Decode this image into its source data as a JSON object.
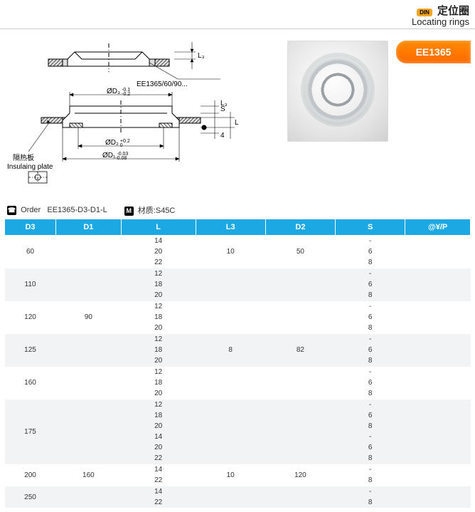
{
  "header": {
    "din": "DIN",
    "title_cn": "定位圈",
    "title_en": "Locating rings"
  },
  "badge": {
    "part": "EE1365"
  },
  "diagram": {
    "callout_model": "EE1365/60/90...",
    "insul_cn": "隔热板",
    "insul_en": "Insulaing plate",
    "dim_L3": "L₃",
    "dim_S": "S",
    "dim_L": "L",
    "dim_4": "4",
    "dim_D3": "ØD₃",
    "dim_D3_tol_up": "-0.1",
    "dim_D3_tol_lo": "-0.2",
    "dim_D2": "ØD₂",
    "dim_D2_tol_up": "+0.2",
    "dim_D2_tol_lo": "0",
    "dim_D1": "ØD₁",
    "dim_D1_tol_up": "-0.03",
    "dim_D1_tol_lo": "-0.08"
  },
  "order": {
    "label_order": "Order",
    "code": "EE1365-D3-D1-L",
    "label_mat": "材质:S45C",
    "icon_m": "M"
  },
  "table": {
    "headers": [
      "D3",
      "D1",
      "L",
      "L3",
      "D2",
      "S",
      "@¥/P"
    ],
    "groups": [
      {
        "d3": "60",
        "d1": "",
        "l3": "10",
        "d2": "50",
        "rows": [
          {
            "l": "14",
            "s": "-"
          },
          {
            "l": "20",
            "s": "6"
          },
          {
            "l": "22",
            "s": "8"
          }
        ]
      },
      {
        "d3": "110",
        "d1": "",
        "l3": "",
        "d2": "",
        "rows": [
          {
            "l": "12",
            "s": "-"
          },
          {
            "l": "18",
            "s": "6"
          },
          {
            "l": "20",
            "s": "8"
          }
        ]
      },
      {
        "d3": "120",
        "d1": "90",
        "l3": "",
        "d2": "",
        "rows": [
          {
            "l": "12",
            "s": "-"
          },
          {
            "l": "18",
            "s": "6"
          },
          {
            "l": "20",
            "s": "8"
          }
        ]
      },
      {
        "d3": "125",
        "d1": "",
        "l3": "8",
        "d2": "82",
        "rows": [
          {
            "l": "12",
            "s": "-"
          },
          {
            "l": "18",
            "s": "6"
          },
          {
            "l": "20",
            "s": "8"
          }
        ]
      },
      {
        "d3": "160",
        "d1": "",
        "l3": "",
        "d2": "",
        "rows": [
          {
            "l": "12",
            "s": "-"
          },
          {
            "l": "18",
            "s": "6"
          },
          {
            "l": "20",
            "s": "8"
          }
        ]
      },
      {
        "d3": "175",
        "d1": "",
        "l3": "",
        "d2": "",
        "rows": [
          {
            "l": "12",
            "s": "-"
          },
          {
            "l": "18",
            "s": "6"
          },
          {
            "l": "20",
            "s": "8"
          },
          {
            "l": "14",
            "s": "-"
          },
          {
            "l": "20",
            "s": "6"
          },
          {
            "l": "22",
            "s": "8"
          }
        ]
      },
      {
        "d3": "200",
        "d1": "160",
        "l3": "10",
        "d2": "120",
        "rows": [
          {
            "l": "14",
            "s": "-"
          },
          {
            "l": "22",
            "s": "8"
          }
        ]
      },
      {
        "d3": "250",
        "d1": "",
        "l3": "",
        "d2": "",
        "rows": [
          {
            "l": "14",
            "s": "-"
          },
          {
            "l": "22",
            "s": "8"
          }
        ]
      }
    ]
  }
}
